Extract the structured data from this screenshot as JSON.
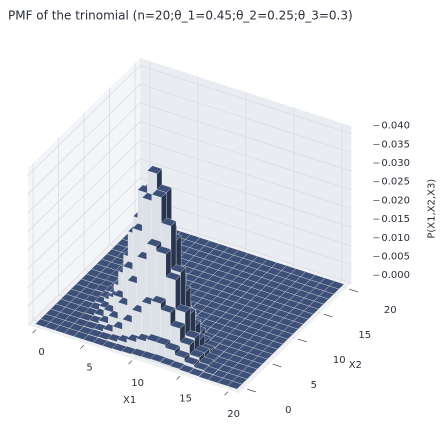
{
  "chart_data": {
    "type": "bar3d",
    "title": "PMF of the trinomial (n=20;θ_1=0.45;θ_2=0.25;θ_3=0.3)",
    "xlabel": "X1",
    "ylabel": "X2",
    "zlabel": "P(X1,X2,X3)",
    "color": "#3d5078",
    "x": [
      0,
      1,
      2,
      3,
      4,
      5,
      6,
      7,
      8,
      9,
      10,
      11,
      12,
      13,
      14,
      15,
      16,
      17,
      18,
      19,
      20
    ],
    "y": [
      0,
      1,
      2,
      3,
      4,
      5,
      6,
      7,
      8,
      9,
      10,
      11,
      12,
      13,
      14,
      15,
      16,
      17,
      18,
      19,
      20
    ],
    "z": [
      [
        0,
        0,
        0,
        0,
        0,
        0,
        0,
        0,
        0,
        0,
        0,
        0,
        0,
        0,
        0,
        0,
        0,
        0,
        0,
        0,
        0
      ],
      [
        0,
        0,
        0,
        0,
        0,
        0,
        0,
        0,
        0,
        0,
        0,
        0,
        0,
        0,
        0,
        0,
        0,
        0,
        0,
        0,
        0
      ],
      [
        0,
        0,
        0,
        0,
        0,
        0,
        0.0001,
        0.0001,
        0.0002,
        0.0001,
        0.0001,
        0.0001,
        0,
        0,
        0,
        0,
        0,
        0,
        0,
        0,
        0
      ],
      [
        0,
        0,
        0,
        0.0001,
        0.0002,
        0.0003,
        0.0006,
        0.0007,
        0.0008,
        0.0006,
        0.0004,
        0.0002,
        0.0001,
        0,
        0,
        0,
        0,
        0,
        0,
        0,
        0
      ],
      [
        0,
        0,
        0.0001,
        0.0003,
        0.0008,
        0.0015,
        0.0023,
        0.0027,
        0.0026,
        0.0019,
        0.0011,
        0.0005,
        0.0002,
        0,
        0,
        0,
        0,
        0,
        0,
        0,
        0
      ],
      [
        0,
        0.0001,
        0.0003,
        0.0011,
        0.0027,
        0.005,
        0.0069,
        0.0074,
        0.0061,
        0.004,
        0.002,
        0.0008,
        0.0002,
        0,
        0,
        0,
        0,
        0,
        0,
        0,
        0
      ],
      [
        0,
        0.0002,
        0.001,
        0.0032,
        0.0074,
        0.0124,
        0.0155,
        0.0148,
        0.0108,
        0.006,
        0.0025,
        0.0008,
        0.0002,
        0,
        0,
        0,
        0,
        0,
        0,
        0,
        0
      ],
      [
        0,
        0.0005,
        0.0025,
        0.0076,
        0.0159,
        0.0239,
        0.0266,
        0.0221,
        0.0138,
        0.0064,
        0.0021,
        0.0005,
        0.0001,
        0,
        0,
        0,
        0,
        0,
        0,
        0,
        0
      ],
      [
        0.0001,
        0.0011,
        0.0052,
        0.0143,
        0.0269,
        0.0358,
        0.0349,
        0.0249,
        0.013,
        0.0048,
        0.0012,
        0.0002,
        0,
        0,
        0,
        0,
        0,
        0,
        0,
        0,
        0
      ],
      [
        0.0002,
        0.0021,
        0.0086,
        0.0215,
        0.0359,
        0.0418,
        0.0349,
        0.0207,
        0.0086,
        0.0024,
        0.0004,
        0,
        0,
        0,
        0,
        0,
        0,
        0,
        0,
        0,
        0
      ],
      [
        0.0004,
        0.0031,
        0.0116,
        0.0258,
        0.0376,
        0.0376,
        0.0261,
        0.0124,
        0.0039,
        0.0007,
        0.0001,
        0,
        0,
        0,
        0,
        0,
        0,
        0,
        0,
        0,
        0
      ],
      [
        0.0005,
        0.0038,
        0.0127,
        0.0246,
        0.0308,
        0.0256,
        0.0142,
        0.0051,
        0.0011,
        0.0001,
        0,
        0,
        0,
        0,
        0,
        0,
        0,
        0,
        0,
        0,
        0
      ],
      [
        0.0006,
        0.0038,
        0.0111,
        0.0185,
        0.0192,
        0.0128,
        0.0053,
        0.0013,
        0.0001,
        0,
        0,
        0,
        0,
        0,
        0,
        0,
        0,
        0,
        0,
        0,
        0
      ],
      [
        0.0005,
        0.0031,
        0.0077,
        0.0107,
        0.0089,
        0.0044,
        0.0012,
        0.0001,
        0,
        0,
        0,
        0,
        0,
        0,
        0,
        0,
        0,
        0,
        0,
        0,
        0
      ],
      [
        0.0004,
        0.002,
        0.0041,
        0.0046,
        0.0029,
        0.001,
        0.0001,
        0,
        0,
        0,
        0,
        0,
        0,
        0,
        0,
        0,
        0,
        0,
        0,
        0,
        0
      ],
      [
        0.0002,
        0.001,
        0.0016,
        0.0014,
        0.0006,
        0.0001,
        0,
        0,
        0,
        0,
        0,
        0,
        0,
        0,
        0,
        0,
        0,
        0,
        0,
        0,
        0
      ],
      [
        0.0001,
        0.0004,
        0.0005,
        0.0003,
        0.0001,
        0,
        0,
        0,
        0,
        0,
        0,
        0,
        0,
        0,
        0,
        0,
        0,
        0,
        0,
        0,
        0
      ],
      [
        0,
        0.0001,
        0.0001,
        0,
        0,
        0,
        0,
        0,
        0,
        0,
        0,
        0,
        0,
        0,
        0,
        0,
        0,
        0,
        0,
        0,
        0
      ],
      [
        0,
        0,
        0,
        0,
        0,
        0,
        0,
        0,
        0,
        0,
        0,
        0,
        0,
        0,
        0,
        0,
        0,
        0,
        0,
        0,
        0
      ],
      [
        0,
        0,
        0,
        0,
        0,
        0,
        0,
        0,
        0,
        0,
        0,
        0,
        0,
        0,
        0,
        0,
        0,
        0,
        0,
        0,
        0
      ],
      [
        0,
        0,
        0,
        0,
        0,
        0,
        0,
        0,
        0,
        0,
        0,
        0,
        0,
        0,
        0,
        0,
        0,
        0,
        0,
        0,
        0
      ]
    ],
    "xlim": [
      -1,
      21
    ],
    "ylim": [
      -1,
      21
    ],
    "zlim": [
      0,
      0.042
    ],
    "xticks": [
      0,
      5,
      10,
      15,
      20
    ],
    "yticks": [
      0,
      5,
      10,
      15,
      20
    ],
    "zticks": [
      {
        "value": 0,
        "label": "0.000"
      },
      {
        "value": 0.005,
        "label": "0.005"
      },
      {
        "value": 0.01,
        "label": "0.010"
      },
      {
        "value": 0.015,
        "label": "0.015"
      },
      {
        "value": 0.02,
        "label": "0.020"
      },
      {
        "value": 0.025,
        "label": "0.025"
      },
      {
        "value": 0.03,
        "label": "0.030"
      },
      {
        "value": 0.035,
        "label": "0.035"
      },
      {
        "value": 0.04,
        "label": "0.040"
      }
    ],
    "grid": true
  }
}
